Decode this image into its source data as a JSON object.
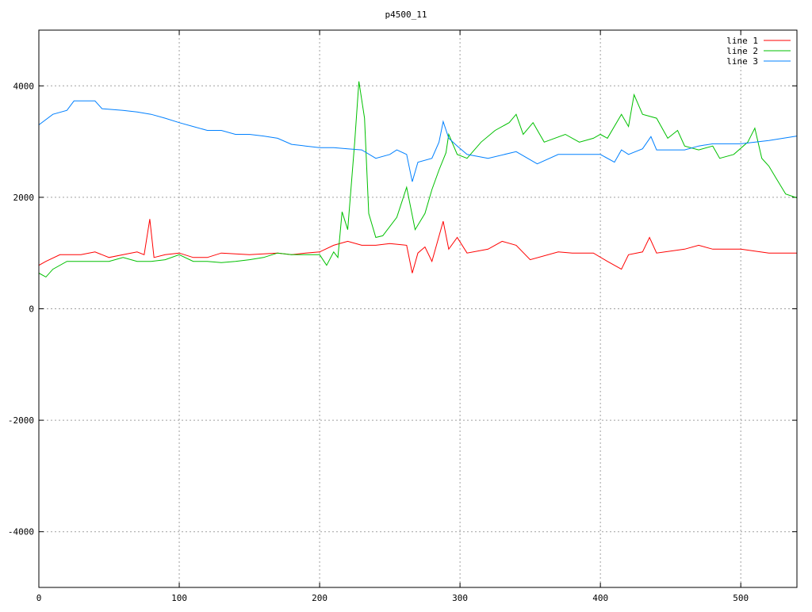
{
  "chart_data": {
    "type": "line",
    "title": "p4500_11",
    "xlabel": "",
    "ylabel": "",
    "xlim": [
      0,
      540
    ],
    "ylim": [
      -5000,
      5000
    ],
    "xticks": [
      0,
      100,
      200,
      300,
      400,
      500
    ],
    "yticks": [
      -4000,
      -2000,
      0,
      2000,
      4000
    ],
    "grid": true,
    "legend_position": "top-right",
    "series": [
      {
        "name": "line 1",
        "color": "#ff0000",
        "x": [
          0,
          5,
          15,
          20,
          30,
          40,
          50,
          60,
          70,
          75,
          79,
          82,
          90,
          100,
          110,
          120,
          130,
          150,
          170,
          180,
          190,
          200,
          210,
          220,
          230,
          240,
          250,
          262,
          266,
          270,
          275,
          280,
          288,
          292,
          298,
          305,
          320,
          330,
          340,
          350,
          370,
          380,
          395,
          405,
          415,
          420,
          430,
          435,
          440,
          460,
          470,
          480,
          500,
          520,
          540
        ],
        "y": [
          780,
          850,
          970,
          970,
          970,
          1020,
          920,
          970,
          1020,
          970,
          1610,
          920,
          970,
          1000,
          920,
          920,
          1000,
          970,
          1000,
          970,
          1000,
          1020,
          1140,
          1210,
          1140,
          1140,
          1170,
          1140,
          640,
          1000,
          1110,
          850,
          1570,
          1070,
          1280,
          1000,
          1070,
          1210,
          1140,
          880,
          1020,
          1000,
          1000,
          850,
          710,
          970,
          1020,
          1280,
          1000,
          1070,
          1140,
          1070,
          1070,
          1000,
          1000
        ]
      },
      {
        "name": "line 2",
        "color": "#00c000",
        "x": [
          0,
          5,
          10,
          20,
          30,
          40,
          50,
          60,
          70,
          80,
          90,
          100,
          110,
          120,
          130,
          140,
          150,
          160,
          170,
          180,
          190,
          200,
          205,
          210,
          213,
          216,
          220,
          225,
          228,
          232,
          235,
          240,
          245,
          255,
          262,
          268,
          275,
          280,
          285,
          290,
          292,
          298,
          305,
          315,
          325,
          335,
          340,
          345,
          352,
          360,
          375,
          385,
          395,
          400,
          405,
          415,
          420,
          424,
          430,
          440,
          448,
          455,
          460,
          470,
          480,
          485,
          495,
          505,
          510,
          515,
          520,
          525,
          532,
          540
        ],
        "y": [
          640,
          570,
          710,
          850,
          850,
          850,
          850,
          920,
          850,
          850,
          880,
          970,
          850,
          850,
          830,
          850,
          880,
          920,
          1000,
          970,
          970,
          970,
          780,
          1020,
          920,
          1740,
          1420,
          2990,
          4080,
          3420,
          1710,
          1280,
          1310,
          1640,
          2180,
          1420,
          1710,
          2140,
          2490,
          2800,
          3130,
          2770,
          2700,
          2990,
          3200,
          3340,
          3490,
          3130,
          3340,
          2990,
          3130,
          2990,
          3060,
          3130,
          3060,
          3490,
          3270,
          3840,
          3490,
          3420,
          3060,
          3200,
          2920,
          2850,
          2920,
          2700,
          2770,
          2990,
          3240,
          2700,
          2560,
          2350,
          2060,
          1990
        ]
      },
      {
        "name": "line 3",
        "color": "#0080ff",
        "x": [
          0,
          10,
          20,
          25,
          35,
          40,
          45,
          60,
          70,
          80,
          90,
          100,
          110,
          120,
          130,
          140,
          150,
          160,
          170,
          180,
          190,
          200,
          210,
          220,
          230,
          240,
          250,
          255,
          262,
          266,
          270,
          280,
          285,
          288,
          292,
          298,
          305,
          320,
          340,
          355,
          370,
          380,
          400,
          410,
          415,
          420,
          430,
          436,
          440,
          450,
          460,
          470,
          480,
          500,
          520,
          540
        ],
        "y": [
          3300,
          3490,
          3560,
          3730,
          3730,
          3730,
          3590,
          3560,
          3530,
          3490,
          3420,
          3340,
          3270,
          3200,
          3200,
          3130,
          3130,
          3100,
          3060,
          2950,
          2920,
          2890,
          2890,
          2870,
          2850,
          2700,
          2770,
          2850,
          2770,
          2280,
          2630,
          2700,
          2990,
          3360,
          3060,
          2920,
          2770,
          2700,
          2820,
          2600,
          2770,
          2770,
          2770,
          2630,
          2850,
          2770,
          2870,
          3090,
          2850,
          2850,
          2850,
          2920,
          2960,
          2960,
          3020,
          3100
        ]
      }
    ]
  }
}
